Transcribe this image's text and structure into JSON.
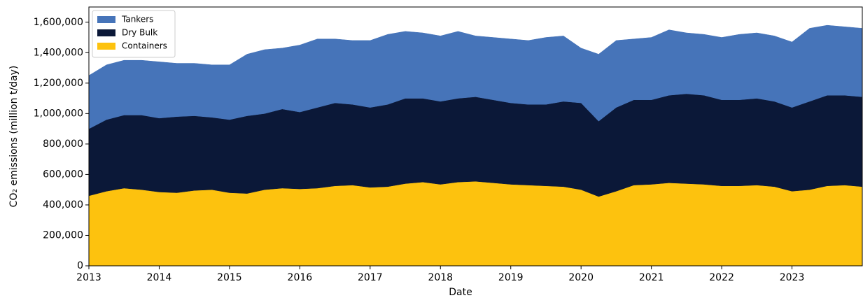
{
  "chart_data": {
    "type": "stacked_area",
    "x_label": "Date",
    "y_label": "CO₂ emissions (million t/day)",
    "x": [
      2013,
      2013.25,
      2013.5,
      2013.75,
      2014,
      2014.25,
      2014.5,
      2014.75,
      2015,
      2015.25,
      2015.5,
      2015.75,
      2016,
      2016.25,
      2016.5,
      2016.75,
      2017,
      2017.25,
      2017.5,
      2017.75,
      2018,
      2018.25,
      2018.5,
      2018.75,
      2019,
      2019.25,
      2019.5,
      2019.75,
      2020,
      2020.25,
      2020.5,
      2020.75,
      2021,
      2021.25,
      2021.5,
      2021.75,
      2022,
      2022.25,
      2022.5,
      2022.75,
      2023,
      2023.25,
      2023.5,
      2023.75,
      2024
    ],
    "series": [
      {
        "name": "Containers",
        "color": "#fdc20e",
        "values": [
          460000,
          490000,
          510000,
          500000,
          485000,
          480000,
          495000,
          500000,
          480000,
          475000,
          500000,
          510000,
          505000,
          510000,
          525000,
          530000,
          515000,
          520000,
          540000,
          550000,
          535000,
          550000,
          555000,
          545000,
          535000,
          530000,
          525000,
          520000,
          500000,
          455000,
          490000,
          530000,
          535000,
          545000,
          540000,
          535000,
          525000,
          525000,
          530000,
          520000,
          490000,
          500000,
          525000,
          530000,
          520000
        ]
      },
      {
        "name": "Dry Bulk",
        "color": "#0b1838",
        "values": [
          440000,
          470000,
          480000,
          490000,
          485000,
          500000,
          490000,
          475000,
          480000,
          510000,
          500000,
          520000,
          505000,
          530000,
          545000,
          530000,
          525000,
          540000,
          560000,
          550000,
          545000,
          550000,
          555000,
          545000,
          535000,
          530000,
          535000,
          560000,
          570000,
          495000,
          550000,
          560000,
          555000,
          575000,
          590000,
          585000,
          565000,
          565000,
          570000,
          560000,
          550000,
          580000,
          595000,
          590000,
          590000
        ]
      },
      {
        "name": "Tankers",
        "color": "#4674b9",
        "values": [
          350000,
          360000,
          360000,
          360000,
          370000,
          350000,
          345000,
          345000,
          360000,
          405000,
          420000,
          400000,
          440000,
          450000,
          420000,
          420000,
          440000,
          460000,
          440000,
          430000,
          430000,
          440000,
          400000,
          410000,
          420000,
          420000,
          440000,
          430000,
          360000,
          440000,
          440000,
          400000,
          410000,
          430000,
          400000,
          400000,
          410000,
          430000,
          430000,
          430000,
          430000,
          480000,
          460000,
          450000,
          450000
        ]
      }
    ],
    "xlim": [
      2013,
      2024
    ],
    "xticks": [
      2013,
      2014,
      2015,
      2016,
      2017,
      2018,
      2019,
      2020,
      2021,
      2022,
      2023
    ],
    "ylim": [
      0,
      1700000
    ],
    "yticks": [
      0,
      {
        "value": 200000,
        "label": "200,000"
      },
      {
        "value": 400000,
        "label": "400,000"
      },
      {
        "value": 600000,
        "label": "600,000"
      },
      {
        "value": 800000,
        "label": "800,000"
      },
      {
        "value": 1000000,
        "label": "1,000,000"
      },
      {
        "value": 1200000,
        "label": "1,200,000"
      },
      {
        "value": 1400000,
        "label": "1,400,000"
      },
      {
        "value": 1600000,
        "label": "1,600,000"
      }
    ],
    "legend": "upper left"
  }
}
